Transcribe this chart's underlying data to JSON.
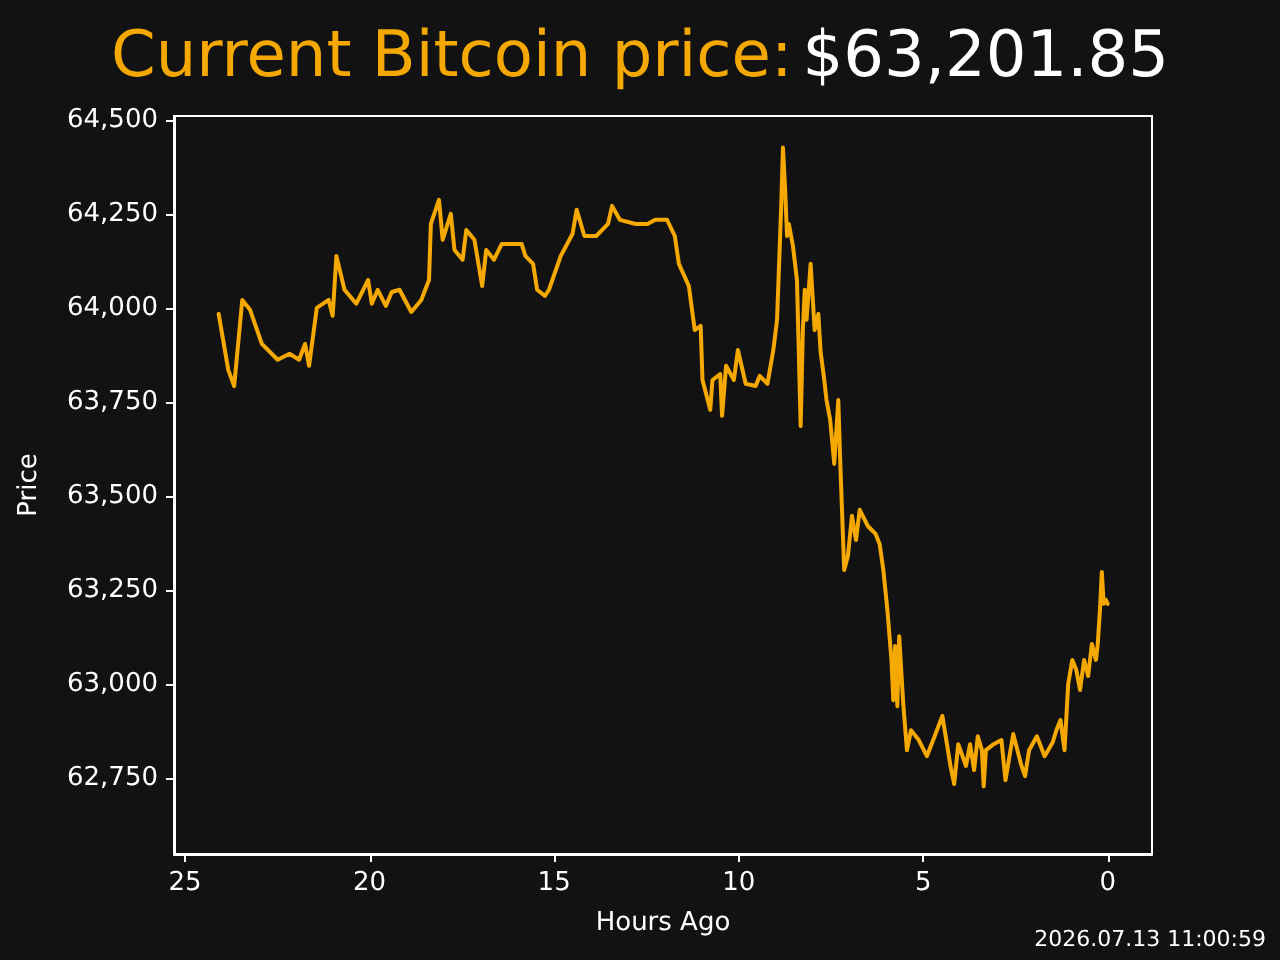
{
  "chart_data": {
    "type": "line",
    "title": "Current Bitcoin price:",
    "subtitle": "$63,201.85",
    "xlabel": "Hours Ago",
    "ylabel": "Price",
    "annotations": [
      "2026.07.13 11:00:59"
    ],
    "xlim": [
      25.3,
      -1.2
    ],
    "xticks": [
      25,
      20,
      15,
      10,
      5,
      0
    ],
    "ylim": [
      62548,
      64510
    ],
    "yticks": [
      {
        "value": 62750,
        "label": "62,750"
      },
      {
        "value": 63000,
        "label": "63,000"
      },
      {
        "value": 63250,
        "label": "63,250"
      },
      {
        "value": 63500,
        "label": "63,500"
      },
      {
        "value": 63750,
        "label": "63,750"
      },
      {
        "value": 64000,
        "label": "64,000"
      },
      {
        "value": 64250,
        "label": "64,250"
      },
      {
        "value": 64500,
        "label": "64,500"
      }
    ],
    "grid": false,
    "marker": "none",
    "line_style": "solid",
    "series": [
      {
        "color": "#f5a800",
        "x": [
          24.09,
          23.83,
          23.67,
          23.45,
          23.24,
          22.92,
          22.49,
          22.17,
          21.91,
          21.75,
          21.64,
          21.43,
          21.11,
          21.0,
          20.9,
          20.68,
          20.36,
          20.04,
          19.94,
          19.78,
          19.56,
          19.4,
          19.19,
          18.87,
          18.6,
          18.39,
          18.34,
          18.12,
          18.02,
          17.8,
          17.7,
          17.48,
          17.38,
          17.16,
          16.95,
          16.84,
          16.63,
          16.42,
          16.2,
          15.88,
          15.78,
          15.57,
          15.46,
          15.25,
          15.14,
          14.82,
          14.5,
          14.39,
          14.18,
          13.86,
          13.54,
          13.43,
          13.22,
          12.79,
          12.47,
          12.26,
          11.94,
          11.73,
          11.62,
          11.35,
          11.19,
          11.03,
          10.98,
          10.77,
          10.71,
          10.5,
          10.45,
          10.34,
          10.13,
          10.02,
          9.81,
          9.54,
          9.43,
          9.22,
          9.06,
          8.96,
          8.85,
          8.8,
          8.74,
          8.69,
          8.64,
          8.53,
          8.42,
          8.32,
          8.26,
          8.21,
          8.16,
          8.05,
          7.94,
          7.84,
          7.78,
          7.68,
          7.62,
          7.52,
          7.41,
          7.3,
          7.25,
          7.14,
          7.04,
          6.93,
          6.82,
          6.72,
          6.5,
          6.29,
          6.18,
          6.08,
          5.97,
          5.86,
          5.81,
          5.76,
          5.7,
          5.65,
          5.54,
          5.44,
          5.33,
          5.12,
          4.9,
          4.69,
          4.48,
          4.26,
          4.16,
          4.05,
          3.84,
          3.73,
          3.62,
          3.52,
          3.41,
          3.36,
          3.3,
          3.09,
          2.88,
          2.77,
          2.56,
          2.35,
          2.24,
          2.13,
          1.92,
          1.71,
          1.49,
          1.39,
          1.28,
          1.17,
          1.07,
          0.96,
          0.85,
          0.75,
          0.64,
          0.53,
          0.43,
          0.32,
          0.27,
          0.21,
          0.16,
          0.11,
          0.05,
          0
        ],
        "values": [
          63984,
          63835,
          63792,
          64021,
          63995,
          63904,
          63862,
          63878,
          63862,
          63904,
          63846,
          64000,
          64021,
          63979,
          64138,
          64048,
          64011,
          64074,
          64011,
          64048,
          64005,
          64042,
          64048,
          63989,
          64021,
          64074,
          64223,
          64287,
          64181,
          64250,
          64154,
          64128,
          64207,
          64181,
          64058,
          64154,
          64128,
          64170,
          64170,
          64170,
          64138,
          64117,
          64048,
          64032,
          64048,
          64138,
          64197,
          64261,
          64191,
          64191,
          64223,
          64271,
          64234,
          64223,
          64223,
          64234,
          64234,
          64191,
          64117,
          64058,
          63941,
          63952,
          63808,
          63729,
          63808,
          63824,
          63713,
          63846,
          63808,
          63888,
          63798,
          63792,
          63819,
          63798,
          63888,
          63968,
          64261,
          64426,
          64314,
          64191,
          64223,
          64165,
          64074,
          63686,
          63941,
          64048,
          63968,
          64117,
          63941,
          63984,
          63883,
          63808,
          63755,
          63702,
          63585,
          63755,
          63596,
          63303,
          63340,
          63447,
          63383,
          63463,
          63420,
          63399,
          63372,
          63303,
          63197,
          63064,
          62957,
          63101,
          62941,
          63127,
          62947,
          62824,
          62877,
          62851,
          62808,
          62861,
          62915,
          62782,
          62734,
          62840,
          62782,
          62840,
          62771,
          62861,
          62824,
          62728,
          62824,
          62840,
          62851,
          62744,
          62867,
          62787,
          62755,
          62824,
          62861,
          62808,
          62845,
          62877,
          62904,
          62824,
          63000,
          63064,
          63037,
          62984,
          63064,
          63021,
          63106,
          63064,
          63106,
          63197,
          63298,
          63213,
          63224,
          63213
        ]
      }
    ]
  }
}
